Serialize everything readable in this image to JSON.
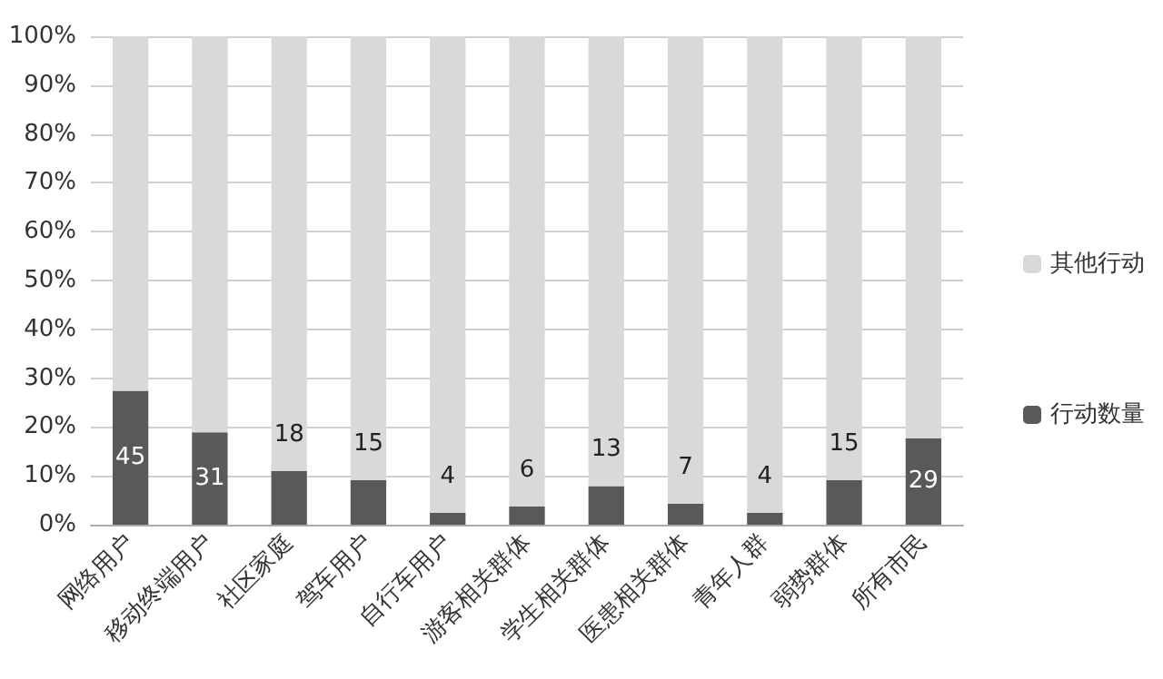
{
  "chart_data": {
    "type": "bar",
    "stacked": true,
    "categories": [
      "网络用户",
      "移动终端用户",
      "社区家庭",
      "驾车用户",
      "自行车用户",
      "游客相关群体",
      "学生相关群体",
      "医患相关群体",
      "青年人群",
      "弱势群体",
      "所有市民"
    ],
    "series": [
      {
        "name": "行动数量",
        "color": "#595959",
        "values": [
          27.4,
          18.9,
          11,
          9.1,
          2.4,
          3.7,
          7.9,
          4.3,
          2.4,
          9.1,
          17.7
        ]
      },
      {
        "name": "其他行动",
        "color": "#d9d9d9",
        "values": [
          72.6,
          81.1,
          89,
          90.9,
          97.6,
          96.3,
          92.1,
          95.7,
          97.6,
          90.9,
          82.3
        ]
      }
    ],
    "ylim": [
      0,
      100
    ],
    "yticks": [
      {
        "value": 0,
        "label": "0%"
      },
      {
        "value": 10,
        "label": "10%"
      },
      {
        "value": 20,
        "label": "20%"
      },
      {
        "value": 30,
        "label": "30%"
      },
      {
        "value": 40,
        "label": "40%"
      },
      {
        "value": 50,
        "label": "50%"
      },
      {
        "value": 60,
        "label": "60%"
      },
      {
        "value": 70,
        "label": "70%"
      },
      {
        "value": 80,
        "label": "80%"
      },
      {
        "value": 90,
        "label": "90%"
      },
      {
        "value": 100,
        "label": "100%"
      }
    ],
    "annotations": [
      {
        "text": "45",
        "x": "网络用户",
        "y": 27.4
      },
      {
        "text": "31",
        "x": "移动终端用户",
        "y": 18.9
      },
      {
        "text": "18",
        "x": "社区家庭",
        "y": 11
      },
      {
        "text": "15",
        "x": "驾车用户",
        "y": 9.1
      },
      {
        "text": "4",
        "x": "自行车用户",
        "y": 2.4
      },
      {
        "text": "6",
        "x": "游客相关群体",
        "y": 3.7
      },
      {
        "text": "13",
        "x": "学生相关群体",
        "y": 7.9
      },
      {
        "text": "7",
        "x": "医患相关群体",
        "y": 4.3
      },
      {
        "text": "4",
        "x": "青年人群",
        "y": 2.4
      },
      {
        "text": "15",
        "x": "弱势群体",
        "y": 9.1
      },
      {
        "text": "29",
        "x": "所有市民",
        "y": 17.7
      }
    ],
    "grid": "y",
    "legend": "right"
  }
}
